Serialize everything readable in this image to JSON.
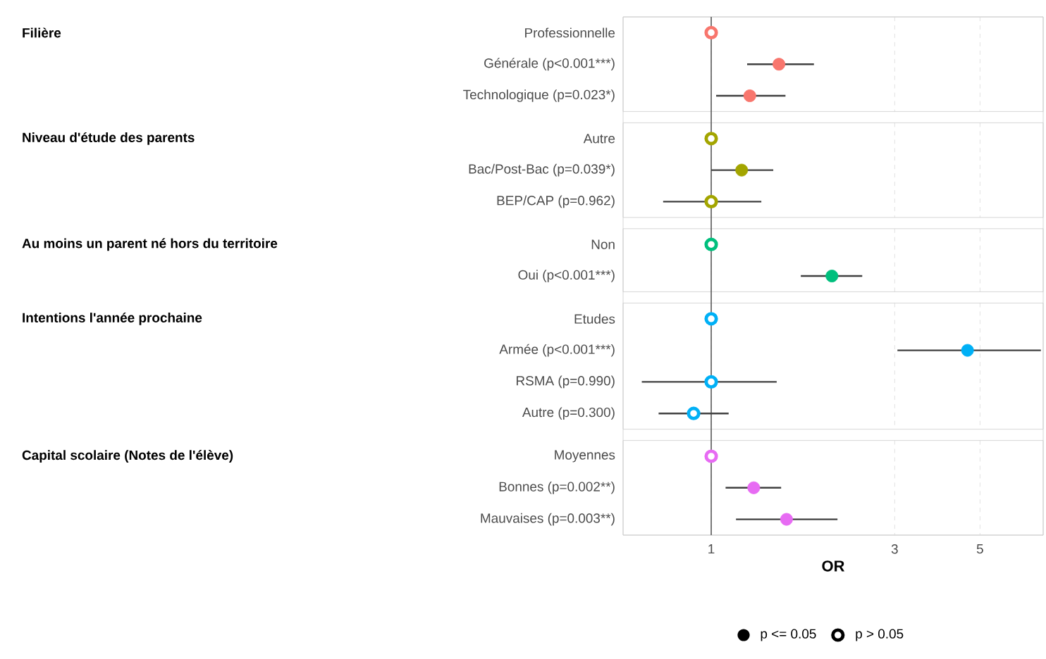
{
  "chart_data": {
    "type": "scatter",
    "orientation": "horizontal",
    "xlabel": "OR",
    "categories": [
      "Professionnelle",
      "Générale (p<0.001***)",
      "Technologique (p=0.023*)",
      "Autre",
      "Bac/Post-Bac (p=0.039*)",
      "BEP/CAP (p=0.962)",
      "Non",
      "Oui (p<0.001***)",
      "Etudes",
      "Armée (p<0.001***)",
      "RSMA (p=0.990)",
      "Autre (p=0.300)",
      "Moyennes",
      "Bonnes (p=0.002**)",
      "Mauvaises (p=0.003**)"
    ],
    "series": [
      {
        "colors": [
          "#f8766d",
          "#f8766d",
          "#f8766d",
          "#a3a500",
          "#a3a500",
          "#a3a500",
          "#00bf7d",
          "#00bf7d",
          "#00b0f6",
          "#00b0f6",
          "#00b0f6",
          "#00b0f6",
          "#e76bf3",
          "#e76bf3",
          "#e76bf3"
        ],
        "values": [
          null,
          1.5,
          1.26,
          null,
          1.2,
          null,
          null,
          2.06,
          null,
          4.64,
          null,
          null,
          null,
          1.29,
          1.57
        ],
        "errors": [
          null,
          [
            1.24,
            1.85
          ],
          [
            1.03,
            1.56
          ],
          null,
          [
            1.0,
            1.45
          ],
          null,
          null,
          [
            1.71,
            2.47
          ],
          null,
          [
            3.05,
            7.2
          ],
          null,
          null,
          null,
          [
            1.09,
            1.52
          ],
          [
            1.16,
            2.13
          ]
        ]
      },
      {
        "colors": [
          "#f8766d",
          "#f8766d",
          "#f8766d",
          "#a3a500",
          "#a3a500",
          "#a3a500",
          "#00bf7d",
          "#00bf7d",
          "#00b0f6",
          "#00b0f6",
          "#00b0f6",
          "#00b0f6",
          "#e76bf3",
          "#e76bf3",
          "#e76bf3"
        ],
        "values": [
          1,
          null,
          null,
          1,
          null,
          1.0,
          1,
          null,
          1,
          null,
          1.0,
          0.9,
          1,
          null,
          null
        ],
        "errors": [
          null,
          null,
          null,
          null,
          null,
          [
            0.75,
            1.35
          ],
          null,
          null,
          null,
          null,
          [
            0.66,
            1.48
          ],
          [
            0.73,
            1.11
          ],
          null,
          null,
          null
        ]
      }
    ],
    "annotations": [
      "Filière",
      "Niveau d'étude des parents",
      "Au moins un parent né hors du territoire",
      "Intentions l'année prochaine",
      "Capital scolaire (Notes de l'élève)",
      "p <= 0.05",
      "p > 0.05"
    ],
    "xlim": [
      0.59,
      7.3
    ],
    "xticks": [
      1,
      3,
      5
    ],
    "log": "x",
    "grid": "x",
    "marker": "circle",
    "ref_lines": [
      {
        "axis": "x",
        "value": 1,
        "color": "#595959"
      }
    ]
  }
}
